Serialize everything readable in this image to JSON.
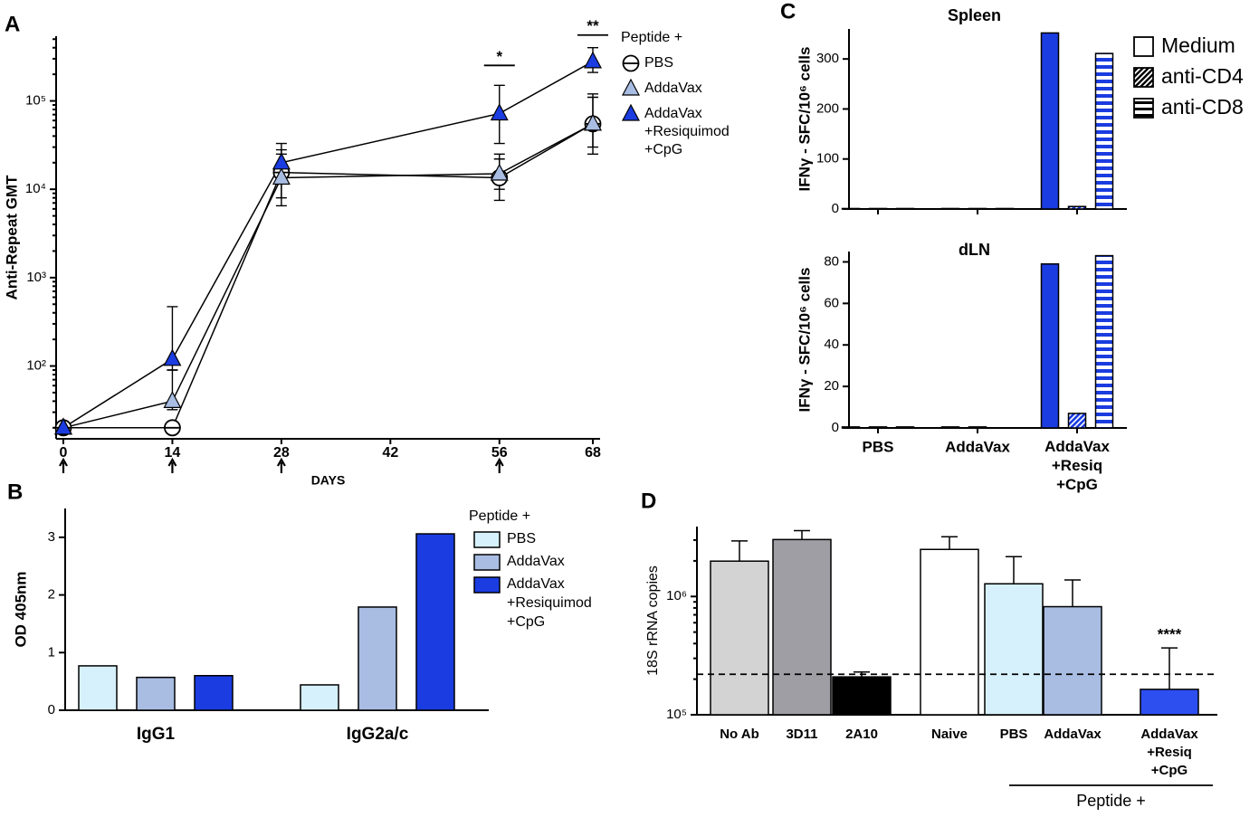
{
  "chart_data": [
    {
      "type": "line",
      "panel": "A",
      "ylabel": "Anti-Repeat GMT",
      "xlabel": "DAYS",
      "log": true,
      "x": [
        0,
        14,
        28,
        56,
        68
      ],
      "xlim": [
        0,
        68
      ],
      "xticks": [
        0,
        14,
        28,
        42,
        56,
        68
      ],
      "ylim": [
        15,
        540000
      ],
      "yticks": [
        {
          "value": 100,
          "label": "10²"
        },
        {
          "value": 1000,
          "label": "10³"
        },
        {
          "value": 10000,
          "label": "10⁴"
        },
        {
          "value": 100000,
          "label": "10⁵"
        }
      ],
      "legend_title": "Peptide +",
      "series": [
        {
          "name": "PBS",
          "marker": "circle",
          "color": "#ffffff",
          "values": [
            20,
            20,
            15500,
            13500,
            55000
          ],
          "lower": [
            null,
            null,
            8000,
            7500,
            25000
          ],
          "upper": [
            null,
            null,
            28000,
            25000,
            120000
          ]
        },
        {
          "name": "AddaVax",
          "marker": "triangle",
          "color": "#a9bde3",
          "values": [
            20,
            40,
            13500,
            15000,
            55000
          ],
          "lower": [
            null,
            32,
            6500,
            10000,
            30000
          ],
          "upper": [
            null,
            90,
            25000,
            22000,
            110000
          ]
        },
        {
          "name": "AddaVax\n+Resiquimod\n+CpG",
          "marker": "triangle",
          "color": "#1a3ce0",
          "values": [
            20,
            120,
            20000,
            72000,
            280000
          ],
          "lower": [
            null,
            90,
            12000,
            33000,
            210000
          ],
          "upper": [
            null,
            470,
            33000,
            150000,
            400000
          ]
        }
      ],
      "annotations": [
        {
          "text": "*",
          "x": 56
        },
        {
          "text": "**",
          "x": 68
        }
      ],
      "markers_x": [
        0,
        14,
        28,
        56
      ]
    },
    {
      "type": "bar",
      "panel": "B",
      "ylabel": "OD 405nm",
      "categories": [
        "IgG1",
        "IgG2a/c"
      ],
      "ylim": [
        0,
        3.5
      ],
      "yticks": [
        0,
        1,
        2,
        3
      ],
      "legend_title": "Peptide +",
      "series": [
        {
          "name": "PBS",
          "color": "#d6f1fb",
          "values": [
            0.77,
            0.44
          ]
        },
        {
          "name": "AddaVax",
          "color": "#a9bde3",
          "values": [
            0.57,
            1.79
          ]
        },
        {
          "name": "AddaVax\n+Resiquimod\n+CpG",
          "color": "#1a3ce0",
          "values": [
            0.6,
            3.06
          ]
        }
      ]
    },
    {
      "type": "bar",
      "panel": "C",
      "title": "Spleen",
      "ylabel": "IFNγ - SFC/10⁶ cells",
      "categories": [
        null,
        null,
        null
      ],
      "ylim": [
        0,
        360
      ],
      "yticks": [
        0,
        100,
        200,
        300
      ],
      "series": [
        {
          "name": "Medium",
          "color": "#1a3ce0",
          "pattern": "solid",
          "values": [
            1,
            1,
            352
          ]
        },
        {
          "name": "anti-CD4",
          "color": "#1a3ce0",
          "pattern": "diagonal",
          "values": [
            1,
            1,
            5
          ]
        },
        {
          "name": "anti-CD8",
          "color": "#1a3ce0",
          "pattern": "horizontal",
          "values": [
            1,
            1,
            311
          ]
        }
      ]
    },
    {
      "type": "bar",
      "title": "dLN",
      "ylabel": "IFNγ - SFC/10⁶ cells",
      "categories": [
        "PBS",
        "AddaVax",
        "AddaVax\n+Resiq\n+CpG"
      ],
      "ylim": [
        0,
        85
      ],
      "yticks": [
        0,
        20,
        40,
        60,
        80
      ],
      "series": [
        {
          "name": "Medium",
          "color": "#1a3ce0",
          "pattern": "solid",
          "values": [
            0.5,
            0.5,
            79
          ]
        },
        {
          "name": "anti-CD4",
          "color": "#1a3ce0",
          "pattern": "diagonal",
          "values": [
            0.5,
            0.5,
            7
          ]
        },
        {
          "name": "anti-CD8",
          "color": "#1a3ce0",
          "pattern": "horizontal",
          "values": [
            0.5,
            0,
            83
          ]
        }
      ]
    },
    {
      "type": "logbar",
      "panel": "D",
      "ylabel": "18S rRNA copies",
      "log": true,
      "categories": [
        "No Ab",
        "3D11",
        "2A10",
        "Naive",
        "PBS",
        "AddaVax",
        "AddaVax\n+Resiq\n+CpG"
      ],
      "values": [
        1990000,
        3030000,
        209000,
        2500000,
        1280000,
        820000,
        164000
      ],
      "errors": [
        960000,
        570000,
        21000,
        700000,
        890000,
        560000,
        203000
      ],
      "colors": [
        "#d3d3d3",
        "#9e9ea4",
        "#000000",
        "#ffffff",
        "#d6f1fb",
        "#a9bde3",
        "#2d4ff0"
      ],
      "ylim": [
        100000,
        3900000
      ],
      "yticks": [
        {
          "value": 100000,
          "label": "10⁵"
        },
        {
          "value": 1000000,
          "label": "10⁶"
        }
      ],
      "reference_line": 220000,
      "annotations": [
        {
          "text": "****",
          "index": 6
        }
      ],
      "group": {
        "label": "Peptide +",
        "from": 4,
        "to": 6
      }
    }
  ]
}
